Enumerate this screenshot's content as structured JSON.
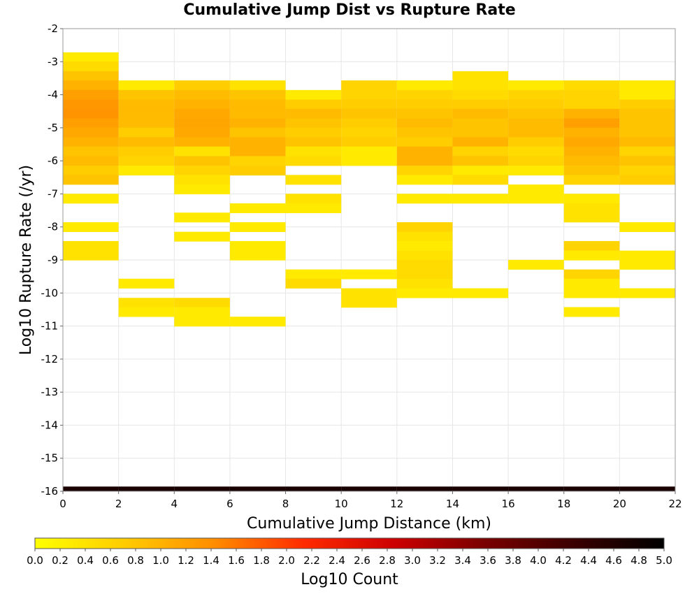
{
  "chart_data": {
    "type": "heatmap",
    "title": "Cumulative Jump Dist vs Rupture Rate",
    "xlabel": "Cumulative Jump Distance (km)",
    "ylabel": "Log10 Rupture Rate (/yr)",
    "xlim": [
      0,
      22
    ],
    "ylim": [
      -16,
      -2
    ],
    "x_ticks": [
      "0",
      "2",
      "4",
      "6",
      "8",
      "10",
      "12",
      "14",
      "16",
      "18",
      "20",
      "22"
    ],
    "y_ticks": [
      "-2",
      "-3",
      "-4",
      "-5",
      "-6",
      "-7",
      "-8",
      "-9",
      "-10",
      "-11",
      "-12",
      "-13",
      "-14",
      "-15",
      "-16"
    ],
    "x_bin_width": 2,
    "y_bin_height": 0.2857,
    "colorbar": {
      "label": "Log10 Count",
      "range": [
        0,
        5
      ],
      "tick_labels": [
        "0.0",
        "0.2",
        "0.4",
        "0.6",
        "0.8",
        "1.0",
        "1.2",
        "1.4",
        "1.6",
        "1.8",
        "2.0",
        "2.2",
        "2.4",
        "2.6",
        "2.8",
        "3.0",
        "3.2",
        "3.4",
        "3.6",
        "3.8",
        "4.0",
        "4.2",
        "4.4",
        "4.6",
        "4.8",
        "5.0"
      ],
      "colors": [
        "#ffff00",
        "#ffcc00",
        "#ff8c00",
        "#ff2a00",
        "#cc0000",
        "#7a0000",
        "#3a0000",
        "#000000"
      ]
    },
    "cells": [
      {
        "x": 1,
        "y": -2.86,
        "v": 0.3
      },
      {
        "x": 1,
        "y": -3.14,
        "v": 0.5
      },
      {
        "x": 1,
        "y": -3.43,
        "v": 0.8
      },
      {
        "x": 1,
        "y": -3.71,
        "v": 1.0
      },
      {
        "x": 1,
        "y": -4.0,
        "v": 1.2
      },
      {
        "x": 1,
        "y": -4.29,
        "v": 1.3
      },
      {
        "x": 1,
        "y": -4.57,
        "v": 1.35
      },
      {
        "x": 1,
        "y": -4.86,
        "v": 1.2
      },
      {
        "x": 1,
        "y": -5.14,
        "v": 1.1
      },
      {
        "x": 1,
        "y": -5.43,
        "v": 1.0
      },
      {
        "x": 1,
        "y": -5.71,
        "v": 0.8
      },
      {
        "x": 1,
        "y": -6.0,
        "v": 0.9
      },
      {
        "x": 1,
        "y": -6.29,
        "v": 0.7
      },
      {
        "x": 1,
        "y": -6.57,
        "v": 0.8
      },
      {
        "x": 1,
        "y": -7.14,
        "v": 0.3
      },
      {
        "x": 1,
        "y": -8.0,
        "v": 0.3
      },
      {
        "x": 1,
        "y": -8.57,
        "v": 0.4
      },
      {
        "x": 1,
        "y": -8.86,
        "v": 0.4
      },
      {
        "x": 3,
        "y": -3.71,
        "v": 0.3
      },
      {
        "x": 3,
        "y": -4.0,
        "v": 0.8
      },
      {
        "x": 3,
        "y": -4.29,
        "v": 0.9
      },
      {
        "x": 3,
        "y": -4.57,
        "v": 0.9
      },
      {
        "x": 3,
        "y": -4.86,
        "v": 0.9
      },
      {
        "x": 3,
        "y": -5.14,
        "v": 0.7
      },
      {
        "x": 3,
        "y": -5.43,
        "v": 0.9
      },
      {
        "x": 3,
        "y": -5.71,
        "v": 0.7
      },
      {
        "x": 3,
        "y": -6.0,
        "v": 0.6
      },
      {
        "x": 3,
        "y": -6.29,
        "v": 0.3
      },
      {
        "x": 3,
        "y": -9.71,
        "v": 0.3
      },
      {
        "x": 3,
        "y": -10.29,
        "v": 0.4
      },
      {
        "x": 3,
        "y": -10.57,
        "v": 0.3
      },
      {
        "x": 5,
        "y": -3.71,
        "v": 0.7
      },
      {
        "x": 5,
        "y": -4.0,
        "v": 0.9
      },
      {
        "x": 5,
        "y": -4.29,
        "v": 1.0
      },
      {
        "x": 5,
        "y": -4.57,
        "v": 1.1
      },
      {
        "x": 5,
        "y": -4.86,
        "v": 1.15
      },
      {
        "x": 5,
        "y": -5.14,
        "v": 1.1
      },
      {
        "x": 5,
        "y": -5.43,
        "v": 1.0
      },
      {
        "x": 5,
        "y": -5.71,
        "v": 0.4
      },
      {
        "x": 5,
        "y": -6.0,
        "v": 0.8
      },
      {
        "x": 5,
        "y": -6.29,
        "v": 0.6
      },
      {
        "x": 5,
        "y": -6.57,
        "v": 0.4
      },
      {
        "x": 5,
        "y": -6.86,
        "v": 0.3
      },
      {
        "x": 5,
        "y": -7.71,
        "v": 0.3
      },
      {
        "x": 5,
        "y": -8.29,
        "v": 0.3
      },
      {
        "x": 5,
        "y": -10.29,
        "v": 0.5
      },
      {
        "x": 5,
        "y": -10.57,
        "v": 0.3
      },
      {
        "x": 5,
        "y": -10.86,
        "v": 0.3
      },
      {
        "x": 7,
        "y": -3.71,
        "v": 0.4
      },
      {
        "x": 7,
        "y": -4.0,
        "v": 0.8
      },
      {
        "x": 7,
        "y": -4.29,
        "v": 0.9
      },
      {
        "x": 7,
        "y": -4.57,
        "v": 0.9
      },
      {
        "x": 7,
        "y": -4.86,
        "v": 1.0
      },
      {
        "x": 7,
        "y": -5.14,
        "v": 0.8
      },
      {
        "x": 7,
        "y": -5.43,
        "v": 1.0
      },
      {
        "x": 7,
        "y": -5.71,
        "v": 1.0
      },
      {
        "x": 7,
        "y": -6.0,
        "v": 0.6
      },
      {
        "x": 7,
        "y": -6.29,
        "v": 0.7
      },
      {
        "x": 7,
        "y": -7.43,
        "v": 0.3
      },
      {
        "x": 7,
        "y": -8.0,
        "v": 0.3
      },
      {
        "x": 7,
        "y": -8.57,
        "v": 0.3
      },
      {
        "x": 7,
        "y": -8.86,
        "v": 0.3
      },
      {
        "x": 7,
        "y": -10.86,
        "v": 0.3
      },
      {
        "x": 9,
        "y": -4.0,
        "v": 0.3
      },
      {
        "x": 9,
        "y": -4.29,
        "v": 0.7
      },
      {
        "x": 9,
        "y": -4.57,
        "v": 0.9
      },
      {
        "x": 9,
        "y": -4.86,
        "v": 0.8
      },
      {
        "x": 9,
        "y": -5.14,
        "v": 0.7
      },
      {
        "x": 9,
        "y": -5.43,
        "v": 0.8
      },
      {
        "x": 9,
        "y": -5.71,
        "v": 0.4
      },
      {
        "x": 9,
        "y": -6.0,
        "v": 0.5
      },
      {
        "x": 9,
        "y": -6.57,
        "v": 0.4
      },
      {
        "x": 9,
        "y": -7.14,
        "v": 0.4
      },
      {
        "x": 9,
        "y": -7.43,
        "v": 0.3
      },
      {
        "x": 9,
        "y": -9.43,
        "v": 0.3
      },
      {
        "x": 9,
        "y": -9.71,
        "v": 0.5
      },
      {
        "x": 11,
        "y": -3.71,
        "v": 0.6
      },
      {
        "x": 11,
        "y": -4.0,
        "v": 0.6
      },
      {
        "x": 11,
        "y": -4.29,
        "v": 0.7
      },
      {
        "x": 11,
        "y": -4.57,
        "v": 0.8
      },
      {
        "x": 11,
        "y": -4.86,
        "v": 0.7
      },
      {
        "x": 11,
        "y": -5.14,
        "v": 0.6
      },
      {
        "x": 11,
        "y": -5.43,
        "v": 0.7
      },
      {
        "x": 11,
        "y": -5.71,
        "v": 0.3
      },
      {
        "x": 11,
        "y": -6.0,
        "v": 0.3
      },
      {
        "x": 11,
        "y": -9.43,
        "v": 0.3
      },
      {
        "x": 11,
        "y": -10.0,
        "v": 0.4
      },
      {
        "x": 11,
        "y": -10.29,
        "v": 0.4
      },
      {
        "x": 13,
        "y": -3.71,
        "v": 0.3
      },
      {
        "x": 13,
        "y": -4.0,
        "v": 0.6
      },
      {
        "x": 13,
        "y": -4.29,
        "v": 0.7
      },
      {
        "x": 13,
        "y": -4.57,
        "v": 0.8
      },
      {
        "x": 13,
        "y": -4.86,
        "v": 0.9
      },
      {
        "x": 13,
        "y": -5.14,
        "v": 0.8
      },
      {
        "x": 13,
        "y": -5.43,
        "v": 0.7
      },
      {
        "x": 13,
        "y": -5.71,
        "v": 1.0
      },
      {
        "x": 13,
        "y": -6.0,
        "v": 1.0
      },
      {
        "x": 13,
        "y": -6.29,
        "v": 0.6
      },
      {
        "x": 13,
        "y": -6.57,
        "v": 0.3
      },
      {
        "x": 13,
        "y": -7.14,
        "v": 0.3
      },
      {
        "x": 13,
        "y": -8.0,
        "v": 0.6
      },
      {
        "x": 13,
        "y": -8.29,
        "v": 0.4
      },
      {
        "x": 13,
        "y": -8.57,
        "v": 0.3
      },
      {
        "x": 13,
        "y": -8.86,
        "v": 0.4
      },
      {
        "x": 13,
        "y": -9.14,
        "v": 0.5
      },
      {
        "x": 13,
        "y": -9.43,
        "v": 0.5
      },
      {
        "x": 13,
        "y": -9.71,
        "v": 0.4
      },
      {
        "x": 13,
        "y": -10.0,
        "v": 0.3
      },
      {
        "x": 15,
        "y": -3.43,
        "v": 0.4
      },
      {
        "x": 15,
        "y": -3.71,
        "v": 0.4
      },
      {
        "x": 15,
        "y": -4.0,
        "v": 0.5
      },
      {
        "x": 15,
        "y": -4.29,
        "v": 0.7
      },
      {
        "x": 15,
        "y": -4.57,
        "v": 0.9
      },
      {
        "x": 15,
        "y": -4.86,
        "v": 0.8
      },
      {
        "x": 15,
        "y": -5.14,
        "v": 0.8
      },
      {
        "x": 15,
        "y": -5.43,
        "v": 1.0
      },
      {
        "x": 15,
        "y": -5.71,
        "v": 0.6
      },
      {
        "x": 15,
        "y": -6.0,
        "v": 0.8
      },
      {
        "x": 15,
        "y": -6.29,
        "v": 0.3
      },
      {
        "x": 15,
        "y": -6.57,
        "v": 0.5
      },
      {
        "x": 15,
        "y": -7.14,
        "v": 0.3
      },
      {
        "x": 15,
        "y": -10.0,
        "v": 0.3
      },
      {
        "x": 17,
        "y": -3.71,
        "v": 0.3
      },
      {
        "x": 17,
        "y": -4.0,
        "v": 0.6
      },
      {
        "x": 17,
        "y": -4.29,
        "v": 0.7
      },
      {
        "x": 17,
        "y": -4.57,
        "v": 0.8
      },
      {
        "x": 17,
        "y": -4.86,
        "v": 0.9
      },
      {
        "x": 17,
        "y": -5.14,
        "v": 0.9
      },
      {
        "x": 17,
        "y": -5.43,
        "v": 0.7
      },
      {
        "x": 17,
        "y": -5.71,
        "v": 0.5
      },
      {
        "x": 17,
        "y": -6.0,
        "v": 0.6
      },
      {
        "x": 17,
        "y": -6.29,
        "v": 0.3
      },
      {
        "x": 17,
        "y": -6.86,
        "v": 0.3
      },
      {
        "x": 17,
        "y": -7.14,
        "v": 0.3
      },
      {
        "x": 17,
        "y": -9.14,
        "v": 0.3
      },
      {
        "x": 19,
        "y": -3.71,
        "v": 0.5
      },
      {
        "x": 19,
        "y": -4.0,
        "v": 0.6
      },
      {
        "x": 19,
        "y": -4.29,
        "v": 0.6
      },
      {
        "x": 19,
        "y": -4.57,
        "v": 1.0
      },
      {
        "x": 19,
        "y": -4.86,
        "v": 1.2
      },
      {
        "x": 19,
        "y": -5.14,
        "v": 1.0
      },
      {
        "x": 19,
        "y": -5.43,
        "v": 1.1
      },
      {
        "x": 19,
        "y": -5.71,
        "v": 1.0
      },
      {
        "x": 19,
        "y": -6.0,
        "v": 0.9
      },
      {
        "x": 19,
        "y": -6.29,
        "v": 0.8
      },
      {
        "x": 19,
        "y": -6.57,
        "v": 0.6
      },
      {
        "x": 19,
        "y": -7.14,
        "v": 0.3
      },
      {
        "x": 19,
        "y": -7.43,
        "v": 0.4
      },
      {
        "x": 19,
        "y": -7.71,
        "v": 0.4
      },
      {
        "x": 19,
        "y": -8.57,
        "v": 0.6
      },
      {
        "x": 19,
        "y": -8.86,
        "v": 0.3
      },
      {
        "x": 19,
        "y": -9.43,
        "v": 0.6
      },
      {
        "x": 19,
        "y": -9.71,
        "v": 0.3
      },
      {
        "x": 19,
        "y": -10.0,
        "v": 0.3
      },
      {
        "x": 19,
        "y": -10.57,
        "v": 0.3
      },
      {
        "x": 21,
        "y": -3.71,
        "v": 0.3
      },
      {
        "x": 21,
        "y": -4.0,
        "v": 0.3
      },
      {
        "x": 21,
        "y": -4.29,
        "v": 0.7
      },
      {
        "x": 21,
        "y": -4.57,
        "v": 0.8
      },
      {
        "x": 21,
        "y": -4.86,
        "v": 0.8
      },
      {
        "x": 21,
        "y": -5.14,
        "v": 0.8
      },
      {
        "x": 21,
        "y": -5.43,
        "v": 0.9
      },
      {
        "x": 21,
        "y": -5.71,
        "v": 0.6
      },
      {
        "x": 21,
        "y": -6.0,
        "v": 0.8
      },
      {
        "x": 21,
        "y": -6.29,
        "v": 0.6
      },
      {
        "x": 21,
        "y": -6.57,
        "v": 0.7
      },
      {
        "x": 21,
        "y": -8.0,
        "v": 0.3
      },
      {
        "x": 21,
        "y": -8.86,
        "v": 0.3
      },
      {
        "x": 21,
        "y": -9.14,
        "v": 0.3
      },
      {
        "x": 21,
        "y": -10.0,
        "v": 0.3
      },
      {
        "x": 1,
        "y": -16.0,
        "v": 4.7
      },
      {
        "x": 3,
        "y": -16.0,
        "v": 4.7
      },
      {
        "x": 5,
        "y": -16.0,
        "v": 4.7
      },
      {
        "x": 7,
        "y": -16.0,
        "v": 4.7
      },
      {
        "x": 9,
        "y": -16.0,
        "v": 4.7
      },
      {
        "x": 11,
        "y": -16.0,
        "v": 4.7
      },
      {
        "x": 13,
        "y": -16.0,
        "v": 4.7
      },
      {
        "x": 15,
        "y": -16.0,
        "v": 4.7
      },
      {
        "x": 17,
        "y": -16.0,
        "v": 4.7
      },
      {
        "x": 19,
        "y": -16.0,
        "v": 4.7
      },
      {
        "x": 21,
        "y": -16.0,
        "v": 4.7
      }
    ]
  }
}
